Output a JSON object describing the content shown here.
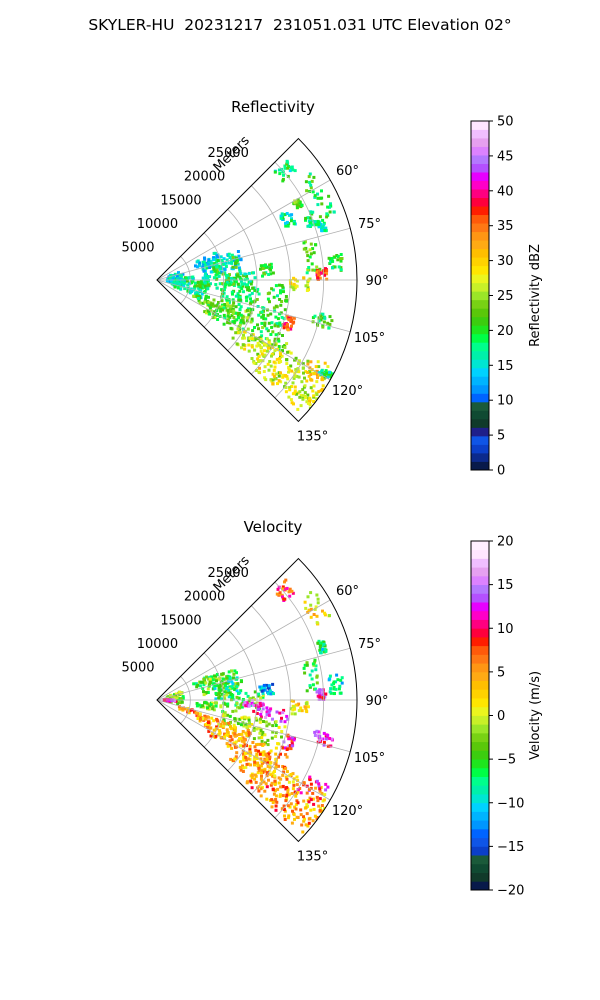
{
  "figure": {
    "title": "SKYLER-HU  20231217  231051.031 UTC Elevation 02°"
  },
  "chart_data": [
    {
      "type": "heatmap",
      "subtype": "polar-sector-ppi",
      "title": "Reflectivity",
      "radial_axis_label": "Meters",
      "radial_ticks": [
        5000,
        10000,
        15000,
        20000,
        25000
      ],
      "radial_tick_labels": [
        "5000",
        "10000",
        "15000",
        "20000",
        "25000"
      ],
      "rlim": [
        0,
        30000
      ],
      "angle_ticks": [
        60,
        75,
        90,
        105,
        120,
        135
      ],
      "angle_tick_labels": [
        "60°",
        "75°",
        "90°",
        "105°",
        "120°",
        "135°"
      ],
      "angle_range": [
        45,
        135
      ],
      "grid": true,
      "colorbar": {
        "label": "Reflectivity dBZ",
        "min": 0,
        "max": 50,
        "ticks": [
          0,
          5,
          10,
          15,
          20,
          25,
          30,
          35,
          40,
          45,
          50
        ],
        "tick_labels": [
          "0",
          "5",
          "10",
          "15",
          "20",
          "25",
          "30",
          "35",
          "40",
          "45",
          "50"
        ],
        "colors": [
          "#081a4a",
          "#0c2a8c",
          "#0b3fc8",
          "#0f55e6",
          "#1f1f8a",
          "#103a2a",
          "#0f4a32",
          "#1a5a3a",
          "#0064ff",
          "#0096ff",
          "#00b4ff",
          "#00d2ff",
          "#00e6d2",
          "#00f0aa",
          "#00ff8c",
          "#00ff46",
          "#1ee61e",
          "#3ccd0f",
          "#5ac80a",
          "#78d214",
          "#9be628",
          "#c8f028",
          "#ebf51e",
          "#ffe600",
          "#ffd200",
          "#ffbe00",
          "#ffaa14",
          "#ff9614",
          "#ff7814",
          "#ff5a0a",
          "#ff1e00",
          "#ff003c",
          "#ff0080",
          "#ff00c8",
          "#e600ff",
          "#b450ff",
          "#b478ff",
          "#dc82ff",
          "#e6a0f0",
          "#f0beff",
          "#ffe6ff"
        ]
      },
      "regions": [
        {
          "az": [
            47,
            52
          ],
          "r": [
            24000,
            26500
          ],
          "value": 18
        },
        {
          "az": [
            55,
            70
          ],
          "r": [
            26000,
            29000
          ],
          "value": 20
        },
        {
          "az": [
            62,
            68
          ],
          "r": [
            20500,
            22500
          ],
          "value": 17
        },
        {
          "az": [
            60,
            63
          ],
          "r": [
            23500,
            24500
          ],
          "value": 22
        },
        {
          "az": [
            66,
            71
          ],
          "r": [
            24000,
            25500
          ],
          "value": 18
        },
        {
          "az": [
            70,
            74
          ],
          "r": [
            25500,
            26500
          ],
          "value": 16
        },
        {
          "az": [
            65,
            72
          ],
          "r": [
            6000,
            10000
          ],
          "value": 14
        },
        {
          "az": [
            68,
            85
          ],
          "r": [
            7000,
            13000
          ],
          "value": 15
        },
        {
          "az": [
            72,
            90
          ],
          "r": [
            8500,
            12500
          ],
          "value": 20
        },
        {
          "az": [
            85,
            95
          ],
          "r": [
            10000,
            16000
          ],
          "value": 19
        },
        {
          "az": [
            82,
            88
          ],
          "r": [
            15500,
            17500
          ],
          "value": 20
        },
        {
          "az": [
            75,
            88
          ],
          "r": [
            22500,
            24500
          ],
          "value": 22
        },
        {
          "az": [
            82,
            88
          ],
          "r": [
            26000,
            28000
          ],
          "value": 20
        },
        {
          "az": [
            70,
            100
          ],
          "r": [
            1500,
            4000
          ],
          "value": 15
        },
        {
          "az": [
            85,
            112
          ],
          "r": [
            2000,
            8000
          ],
          "value": 17
        },
        {
          "az": [
            92,
            100
          ],
          "r": [
            6000,
            20000
          ],
          "value": 20
        },
        {
          "az": [
            100,
            112
          ],
          "r": [
            10000,
            20000
          ],
          "value": 20
        },
        {
          "az": [
            108,
            118
          ],
          "r": [
            6000,
            15000
          ],
          "value": 22
        },
        {
          "az": [
            112,
            124
          ],
          "r": [
            8000,
            22000
          ],
          "value": 22
        },
        {
          "az": [
            118,
            130
          ],
          "r": [
            14000,
            30000
          ],
          "value": 26
        },
        {
          "az": [
            123,
            133
          ],
          "r": [
            18000,
            30000
          ],
          "value": 28
        },
        {
          "az": [
            116,
            123
          ],
          "r": [
            25000,
            29000
          ],
          "value": 30
        },
        {
          "az": [
            118,
            120
          ],
          "r": [
            28000,
            30000
          ],
          "value": 18
        },
        {
          "az": [
            101,
            106
          ],
          "r": [
            24000,
            27000
          ],
          "value": 20
        },
        {
          "az": [
            89,
            94
          ],
          "r": [
            20000,
            23000
          ],
          "value": 28
        },
        {
          "az": [
            86,
            90
          ],
          "r": [
            24000,
            25500
          ],
          "value": 36
        },
        {
          "az": [
            105,
            111
          ],
          "r": [
            20000,
            21500
          ],
          "value": 36
        }
      ]
    },
    {
      "type": "heatmap",
      "subtype": "polar-sector-ppi",
      "title": "Velocity",
      "radial_axis_label": "Meters",
      "radial_ticks": [
        5000,
        10000,
        15000,
        20000,
        25000
      ],
      "radial_tick_labels": [
        "5000",
        "10000",
        "15000",
        "20000",
        "25000"
      ],
      "rlim": [
        0,
        30000
      ],
      "angle_ticks": [
        60,
        75,
        90,
        105,
        120,
        135
      ],
      "angle_tick_labels": [
        "60°",
        "75°",
        "90°",
        "105°",
        "120°",
        "135°"
      ],
      "angle_range": [
        45,
        135
      ],
      "grid": true,
      "colorbar": {
        "label": "Velocity (m/s)",
        "min": -20,
        "max": 20,
        "ticks": [
          -20,
          -15,
          -10,
          -5,
          0,
          5,
          10,
          15,
          20
        ],
        "tick_labels": [
          "−20",
          "−15",
          "−10",
          "−5",
          "0",
          "5",
          "10",
          "15",
          "20"
        ],
        "colors": [
          "#081a4a",
          "#103a2a",
          "#0f4a32",
          "#1a5a3a",
          "#0b3fc8",
          "#0f55e6",
          "#0064ff",
          "#0096ff",
          "#00b4ff",
          "#00d2ff",
          "#00e6d2",
          "#00f0aa",
          "#00ff8c",
          "#00ff46",
          "#1ee61e",
          "#3ccd0f",
          "#5ac80a",
          "#78d214",
          "#9be628",
          "#c8f028",
          "#ebf51e",
          "#ffe600",
          "#ffd200",
          "#ffbe00",
          "#ffaa14",
          "#ff9614",
          "#ff7814",
          "#ff5a0a",
          "#ff1e00",
          "#ff003c",
          "#ff0080",
          "#ff00c8",
          "#e600ff",
          "#b450ff",
          "#b478ff",
          "#dc82ff",
          "#e6a0f0",
          "#f0beff",
          "#ffe6ff",
          "#fff0ff"
        ]
      },
      "regions": [
        {
          "az": [
            47,
            52
          ],
          "r": [
            24000,
            26500
          ],
          "value": 8
        },
        {
          "az": [
            55,
            65
          ],
          "r": [
            26000,
            29000
          ],
          "value": 2
        },
        {
          "az": [
            70,
            74
          ],
          "r": [
            25500,
            26500
          ],
          "value": -8
        },
        {
          "az": [
            65,
            72
          ],
          "r": [
            6000,
            10000
          ],
          "value": -5
        },
        {
          "az": [
            68,
            85
          ],
          "r": [
            7000,
            13000
          ],
          "value": -3
        },
        {
          "az": [
            72,
            90
          ],
          "r": [
            8500,
            12500
          ],
          "value": -7
        },
        {
          "az": [
            85,
            95
          ],
          "r": [
            10000,
            16000
          ],
          "value": -4
        },
        {
          "az": [
            82,
            88
          ],
          "r": [
            15500,
            17500
          ],
          "value": -12
        },
        {
          "az": [
            75,
            88
          ],
          "r": [
            22500,
            24500
          ],
          "value": -5
        },
        {
          "az": [
            82,
            88
          ],
          "r": [
            26000,
            28000
          ],
          "value": -10
        },
        {
          "az": [
            70,
            100
          ],
          "r": [
            1500,
            4000
          ],
          "value": -3
        },
        {
          "az": [
            88,
            96
          ],
          "r": [
            1000,
            3000
          ],
          "value": 13
        },
        {
          "az": [
            92,
            100
          ],
          "r": [
            6000,
            13000
          ],
          "value": -3
        },
        {
          "az": [
            90,
            94
          ],
          "r": [
            13000,
            16000
          ],
          "value": 14
        },
        {
          "az": [
            94,
            100
          ],
          "r": [
            14000,
            20000
          ],
          "value": 13
        },
        {
          "az": [
            90,
            96
          ],
          "r": [
            20000,
            23000
          ],
          "value": 2
        },
        {
          "az": [
            100,
            112
          ],
          "r": [
            10000,
            20000
          ],
          "value": -2
        },
        {
          "az": [
            101,
            106
          ],
          "r": [
            24000,
            27000
          ],
          "value": 12
        },
        {
          "az": [
            105,
            112
          ],
          "r": [
            3000,
            8000
          ],
          "value": 6
        },
        {
          "az": [
            108,
            118
          ],
          "r": [
            6000,
            15000
          ],
          "value": 4
        },
        {
          "az": [
            112,
            124
          ],
          "r": [
            8000,
            22000
          ],
          "value": 5
        },
        {
          "az": [
            118,
            130
          ],
          "r": [
            14000,
            30000
          ],
          "value": 4
        },
        {
          "az": [
            123,
            133
          ],
          "r": [
            18000,
            30000
          ],
          "value": 6
        },
        {
          "az": [
            116,
            123
          ],
          "r": [
            25000,
            29000
          ],
          "value": 10
        },
        {
          "az": [
            86,
            90
          ],
          "r": [
            24000,
            25500
          ],
          "value": 12
        },
        {
          "az": [
            105,
            111
          ],
          "r": [
            20000,
            21500
          ],
          "value": 11
        }
      ]
    }
  ]
}
